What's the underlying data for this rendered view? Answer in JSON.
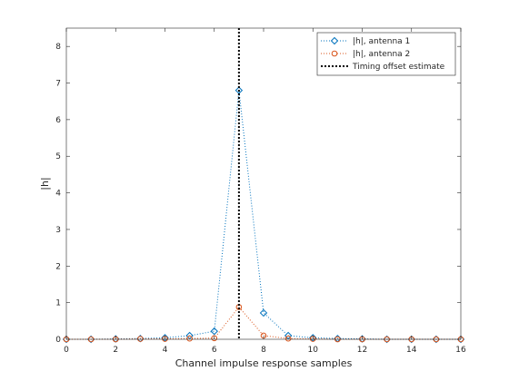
{
  "chart_data": {
    "type": "line",
    "title": "",
    "xlabel": "Channel impulse response samples",
    "ylabel": "|h|",
    "xlim": [
      0,
      16
    ],
    "ylim": [
      0,
      8.5
    ],
    "xticks": [
      0,
      2,
      4,
      6,
      8,
      10,
      12,
      14,
      16
    ],
    "yticks": [
      0,
      1,
      2,
      3,
      4,
      5,
      6,
      7,
      8
    ],
    "grid": false,
    "legend_position": "top-right",
    "x": [
      0,
      1,
      2,
      3,
      4,
      5,
      6,
      7,
      8,
      9,
      10,
      11,
      12,
      13,
      14,
      15,
      16
    ],
    "series": [
      {
        "name": "|h|, antenna 1",
        "color": "#0072BD",
        "line_style": "dotted",
        "marker": "diamond",
        "values": [
          0.0,
          0.0,
          0.01,
          0.02,
          0.04,
          0.1,
          0.22,
          6.8,
          0.72,
          0.1,
          0.04,
          0.02,
          0.01,
          0.0,
          0.0,
          0.0,
          0.0
        ]
      },
      {
        "name": "|h|, antenna 2",
        "color": "#D95319",
        "line_style": "dotted",
        "marker": "circle",
        "values": [
          0.0,
          0.0,
          0.0,
          0.01,
          0.01,
          0.02,
          0.03,
          0.88,
          0.1,
          0.02,
          0.01,
          0.0,
          0.0,
          0.0,
          0.0,
          0.0,
          0.0
        ]
      }
    ],
    "vertical_line": {
      "name": "Timing offset estimate",
      "x": 7,
      "color": "#000000",
      "line_style": "dotted"
    }
  }
}
